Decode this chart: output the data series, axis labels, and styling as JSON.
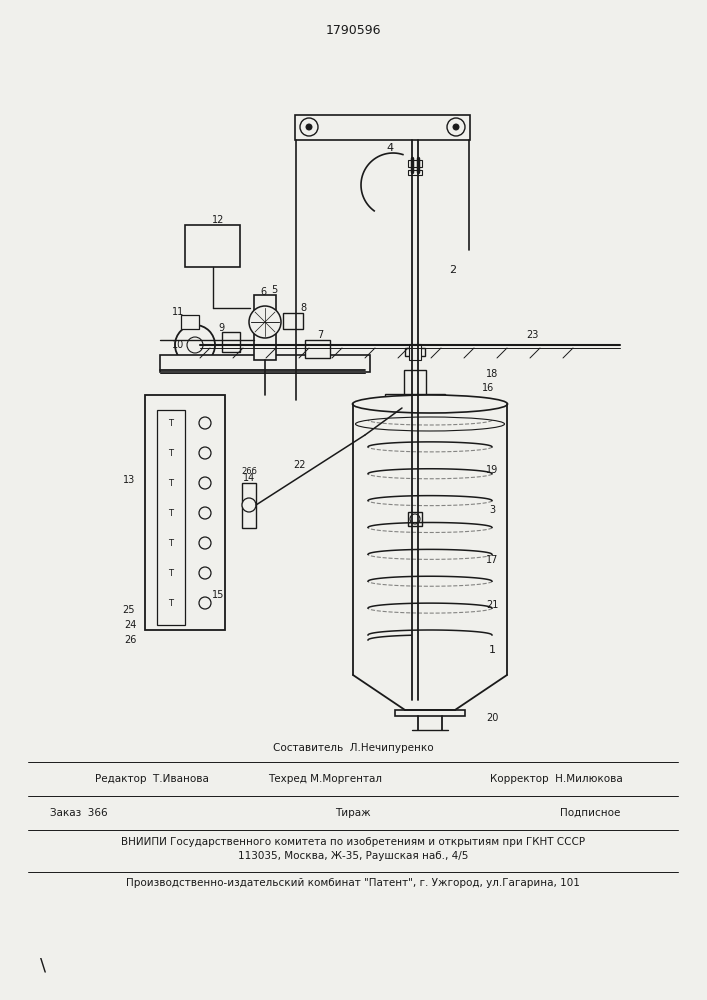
{
  "patent_number": "1790596",
  "bg_color": "#f0f0ec",
  "line_color": "#1a1a1a",
  "editor_line": "Редактор  Т.Иванова",
  "composer_line": "Составитель  Л.Нечипуренко",
  "techred_line": "Техред М.Моргентал",
  "corrector_line": "Корректор  Н.Милюкова",
  "order_line": "Заказ  366",
  "tirazh_line": "Тираж",
  "podpisnoe_line": "Подписное",
  "vniip_line1": "ВНИИПИ Государственного комитета по изобретениям и открытиям при ГКНТ СССР",
  "vniip_line2": "113035, Москва, Ж-35, Раушская наб., 4/5",
  "kombnat_line": "Производственно-издательский комбинат \"Патент\", г. Ужгород, ул.Гагарина, 101"
}
